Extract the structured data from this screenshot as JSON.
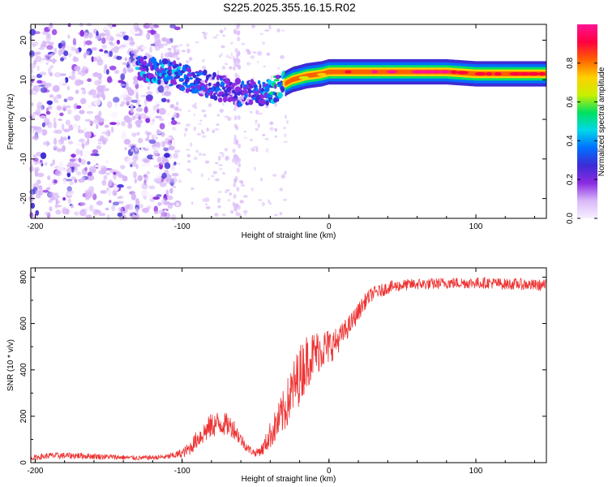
{
  "chart_data": [
    {
      "type": "heatmap",
      "title": "S225.2025.355.16.15.R02",
      "xlabel": "Height of straight line (km)",
      "ylabel": "Frequency (Hz)",
      "xlim": [
        -203,
        148
      ],
      "ylim": [
        -25,
        24
      ],
      "xticks": [
        -200,
        -100,
        0,
        100
      ],
      "yticks": [
        -20,
        -10,
        0,
        10,
        20
      ],
      "colorbar": {
        "label": "Normalized spectral amplitude",
        "range": [
          0,
          1
        ],
        "ticks": [
          "0.0",
          "0.2",
          "0.4",
          "0.6",
          "0.8"
        ],
        "tick_values": [
          0,
          0.2,
          0.4,
          0.6,
          0.8
        ],
        "colors": [
          "#f8f0ff",
          "#d8b8f8",
          "#8a2be2",
          "#3d2bd6",
          "#0070ff",
          "#00d8e8",
          "#00e060",
          "#c8f000",
          "#ffd000",
          "#ff6000",
          "#ff0040",
          "#ff1493"
        ]
      },
      "ridge": {
        "x": [
          -130,
          -110,
          -95,
          -80,
          -65,
          -55,
          -45,
          -35,
          -25,
          -15,
          -5,
          0,
          10,
          30,
          50,
          80,
          100,
          120,
          148
        ],
        "y": [
          13,
          12,
          10,
          8.5,
          7,
          6.5,
          6.5,
          8,
          10,
          11,
          11.5,
          12,
          12,
          12,
          12,
          12,
          11.5,
          11.5,
          11.5
        ],
        "amplitude": [
          0.25,
          0.25,
          0.22,
          0.2,
          0.18,
          0.2,
          0.25,
          0.35,
          0.45,
          0.55,
          0.65,
          0.75,
          0.85,
          0.9,
          0.9,
          0.85,
          0.85,
          0.85,
          0.8
        ]
      },
      "grid": false
    },
    {
      "type": "line",
      "xlabel": "Height of straight line (km)",
      "ylabel": "SNR (10 * v/v)",
      "xlim": [
        -203,
        148
      ],
      "ylim": [
        0,
        840
      ],
      "xticks": [
        -200,
        -100,
        0,
        100
      ],
      "yticks": [
        0,
        200,
        400,
        600,
        800
      ],
      "series": [
        {
          "color": "#ee3333",
          "x": [
            -203,
            -190,
            -170,
            -150,
            -130,
            -120,
            -110,
            -100,
            -95,
            -90,
            -85,
            -80,
            -75,
            -70,
            -65,
            -60,
            -55,
            -50,
            -45,
            -40,
            -35,
            -30,
            -25,
            -20,
            -15,
            -10,
            -5,
            0,
            5,
            10,
            15,
            20,
            25,
            30,
            35,
            40,
            50,
            60,
            70,
            80,
            90,
            100,
            110,
            120,
            130,
            140,
            148
          ],
          "y": [
            20,
            30,
            30,
            25,
            20,
            22,
            25,
            40,
            60,
            100,
            130,
            160,
            170,
            165,
            150,
            100,
            60,
            40,
            60,
            120,
            170,
            230,
            310,
            380,
            440,
            470,
            490,
            500,
            520,
            560,
            600,
            650,
            700,
            730,
            740,
            755,
            765,
            770,
            770,
            775,
            775,
            775,
            775,
            770,
            770,
            765,
            765
          ],
          "noise": [
            10,
            14,
            14,
            12,
            10,
            10,
            12,
            20,
            30,
            40,
            50,
            55,
            55,
            50,
            45,
            30,
            20,
            15,
            30,
            60,
            80,
            100,
            120,
            130,
            120,
            100,
            90,
            80,
            60,
            50,
            45,
            40,
            35,
            30,
            28,
            28,
            25,
            25,
            25,
            25,
            25,
            25,
            25,
            25,
            25,
            25,
            25
          ]
        }
      ],
      "grid": false
    }
  ]
}
